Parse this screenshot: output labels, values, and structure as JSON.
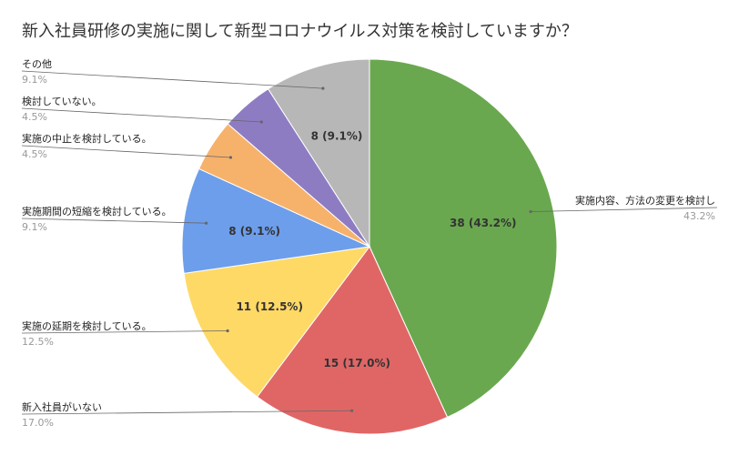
{
  "chart_data": {
    "type": "pie",
    "title": "新入社員研修の実施に関して新型コロナウイルス対策を検討していますか？",
    "slices": [
      {
        "label": "実施内容、方法の変更を検討し",
        "count": 38,
        "percent": 43.2,
        "inner_label": "38 (43.2%)",
        "legend_percent": "43.2%",
        "color": "#6aa84f"
      },
      {
        "label": "新入社員がいない",
        "count": 15,
        "percent": 17.0,
        "inner_label": "15 (17.0%)",
        "legend_percent": "17.0%",
        "color": "#e06666"
      },
      {
        "label": "実施の延期を検討している。",
        "count": 11,
        "percent": 12.5,
        "inner_label": "11 (12.5%)",
        "legend_percent": "12.5%",
        "color": "#ffd966"
      },
      {
        "label": "実施期間の短縮を検討している。",
        "count": 8,
        "percent": 9.1,
        "inner_label": "8 (9.1%)",
        "legend_percent": "9.1%",
        "color": "#6d9eeb"
      },
      {
        "label": "実施の中止を検討している。",
        "count": 4,
        "percent": 4.5,
        "inner_label": "",
        "legend_percent": "4.5%",
        "color": "#f6b26b"
      },
      {
        "label": "検討していない。",
        "count": 4,
        "percent": 4.5,
        "inner_label": "",
        "legend_percent": "4.5%",
        "color": "#8e7cc3"
      },
      {
        "label": "その他",
        "count": 8,
        "percent": 9.1,
        "inner_label": "8 (9.1%)",
        "legend_percent": "9.1%",
        "color": "#b7b7b7"
      }
    ]
  }
}
